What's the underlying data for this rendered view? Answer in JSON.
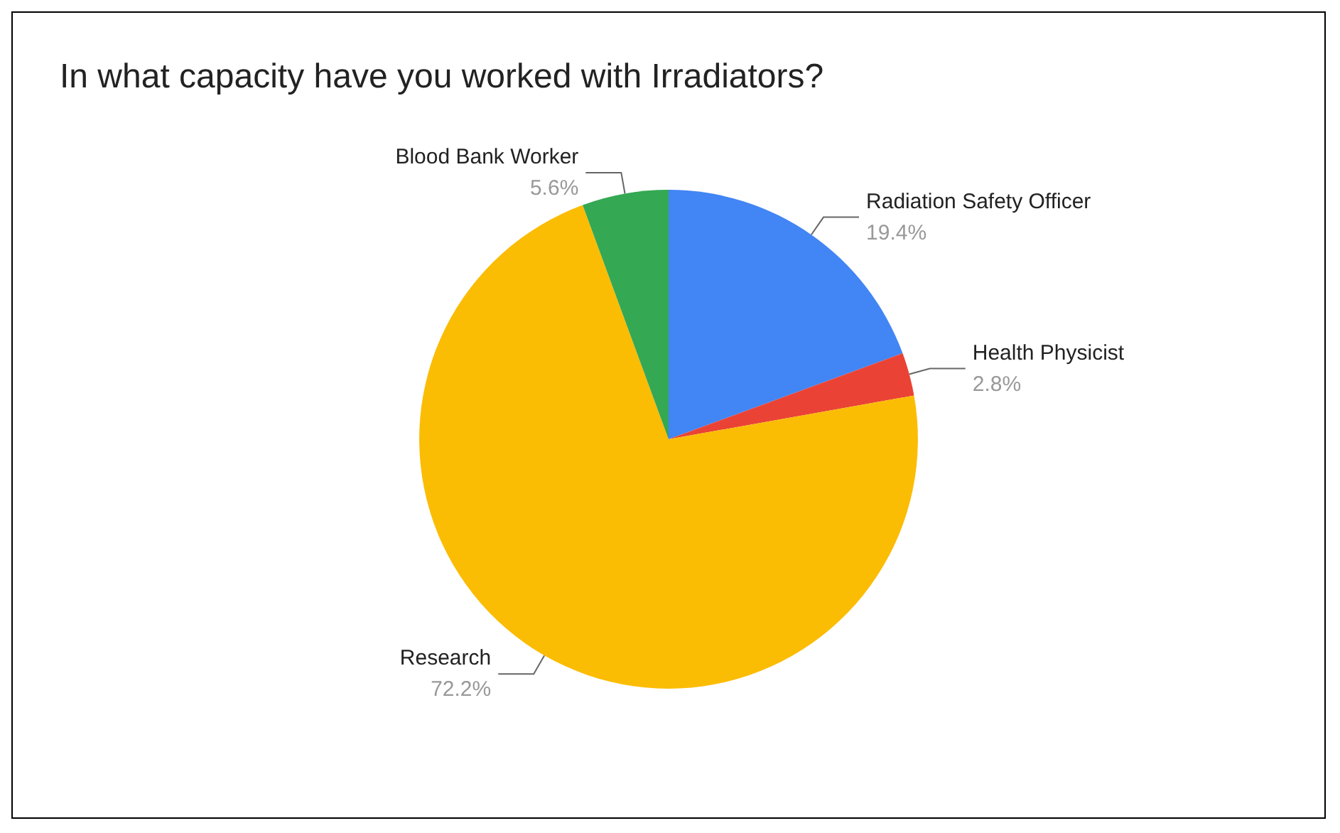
{
  "chart_data": {
    "type": "pie",
    "title": "In what capacity have you worked with Irradiators?",
    "categories": [
      "Radiation Safety Officer",
      "Health Physicist",
      "Research",
      "Blood Bank Worker"
    ],
    "values": [
      19.4,
      2.8,
      72.2,
      5.6
    ],
    "value_labels": [
      "19.4%",
      "2.8%",
      "72.2%",
      "5.6%"
    ],
    "colors": [
      "#4285f4",
      "#ea4335",
      "#fbbc04",
      "#34a853"
    ],
    "legend": false
  }
}
